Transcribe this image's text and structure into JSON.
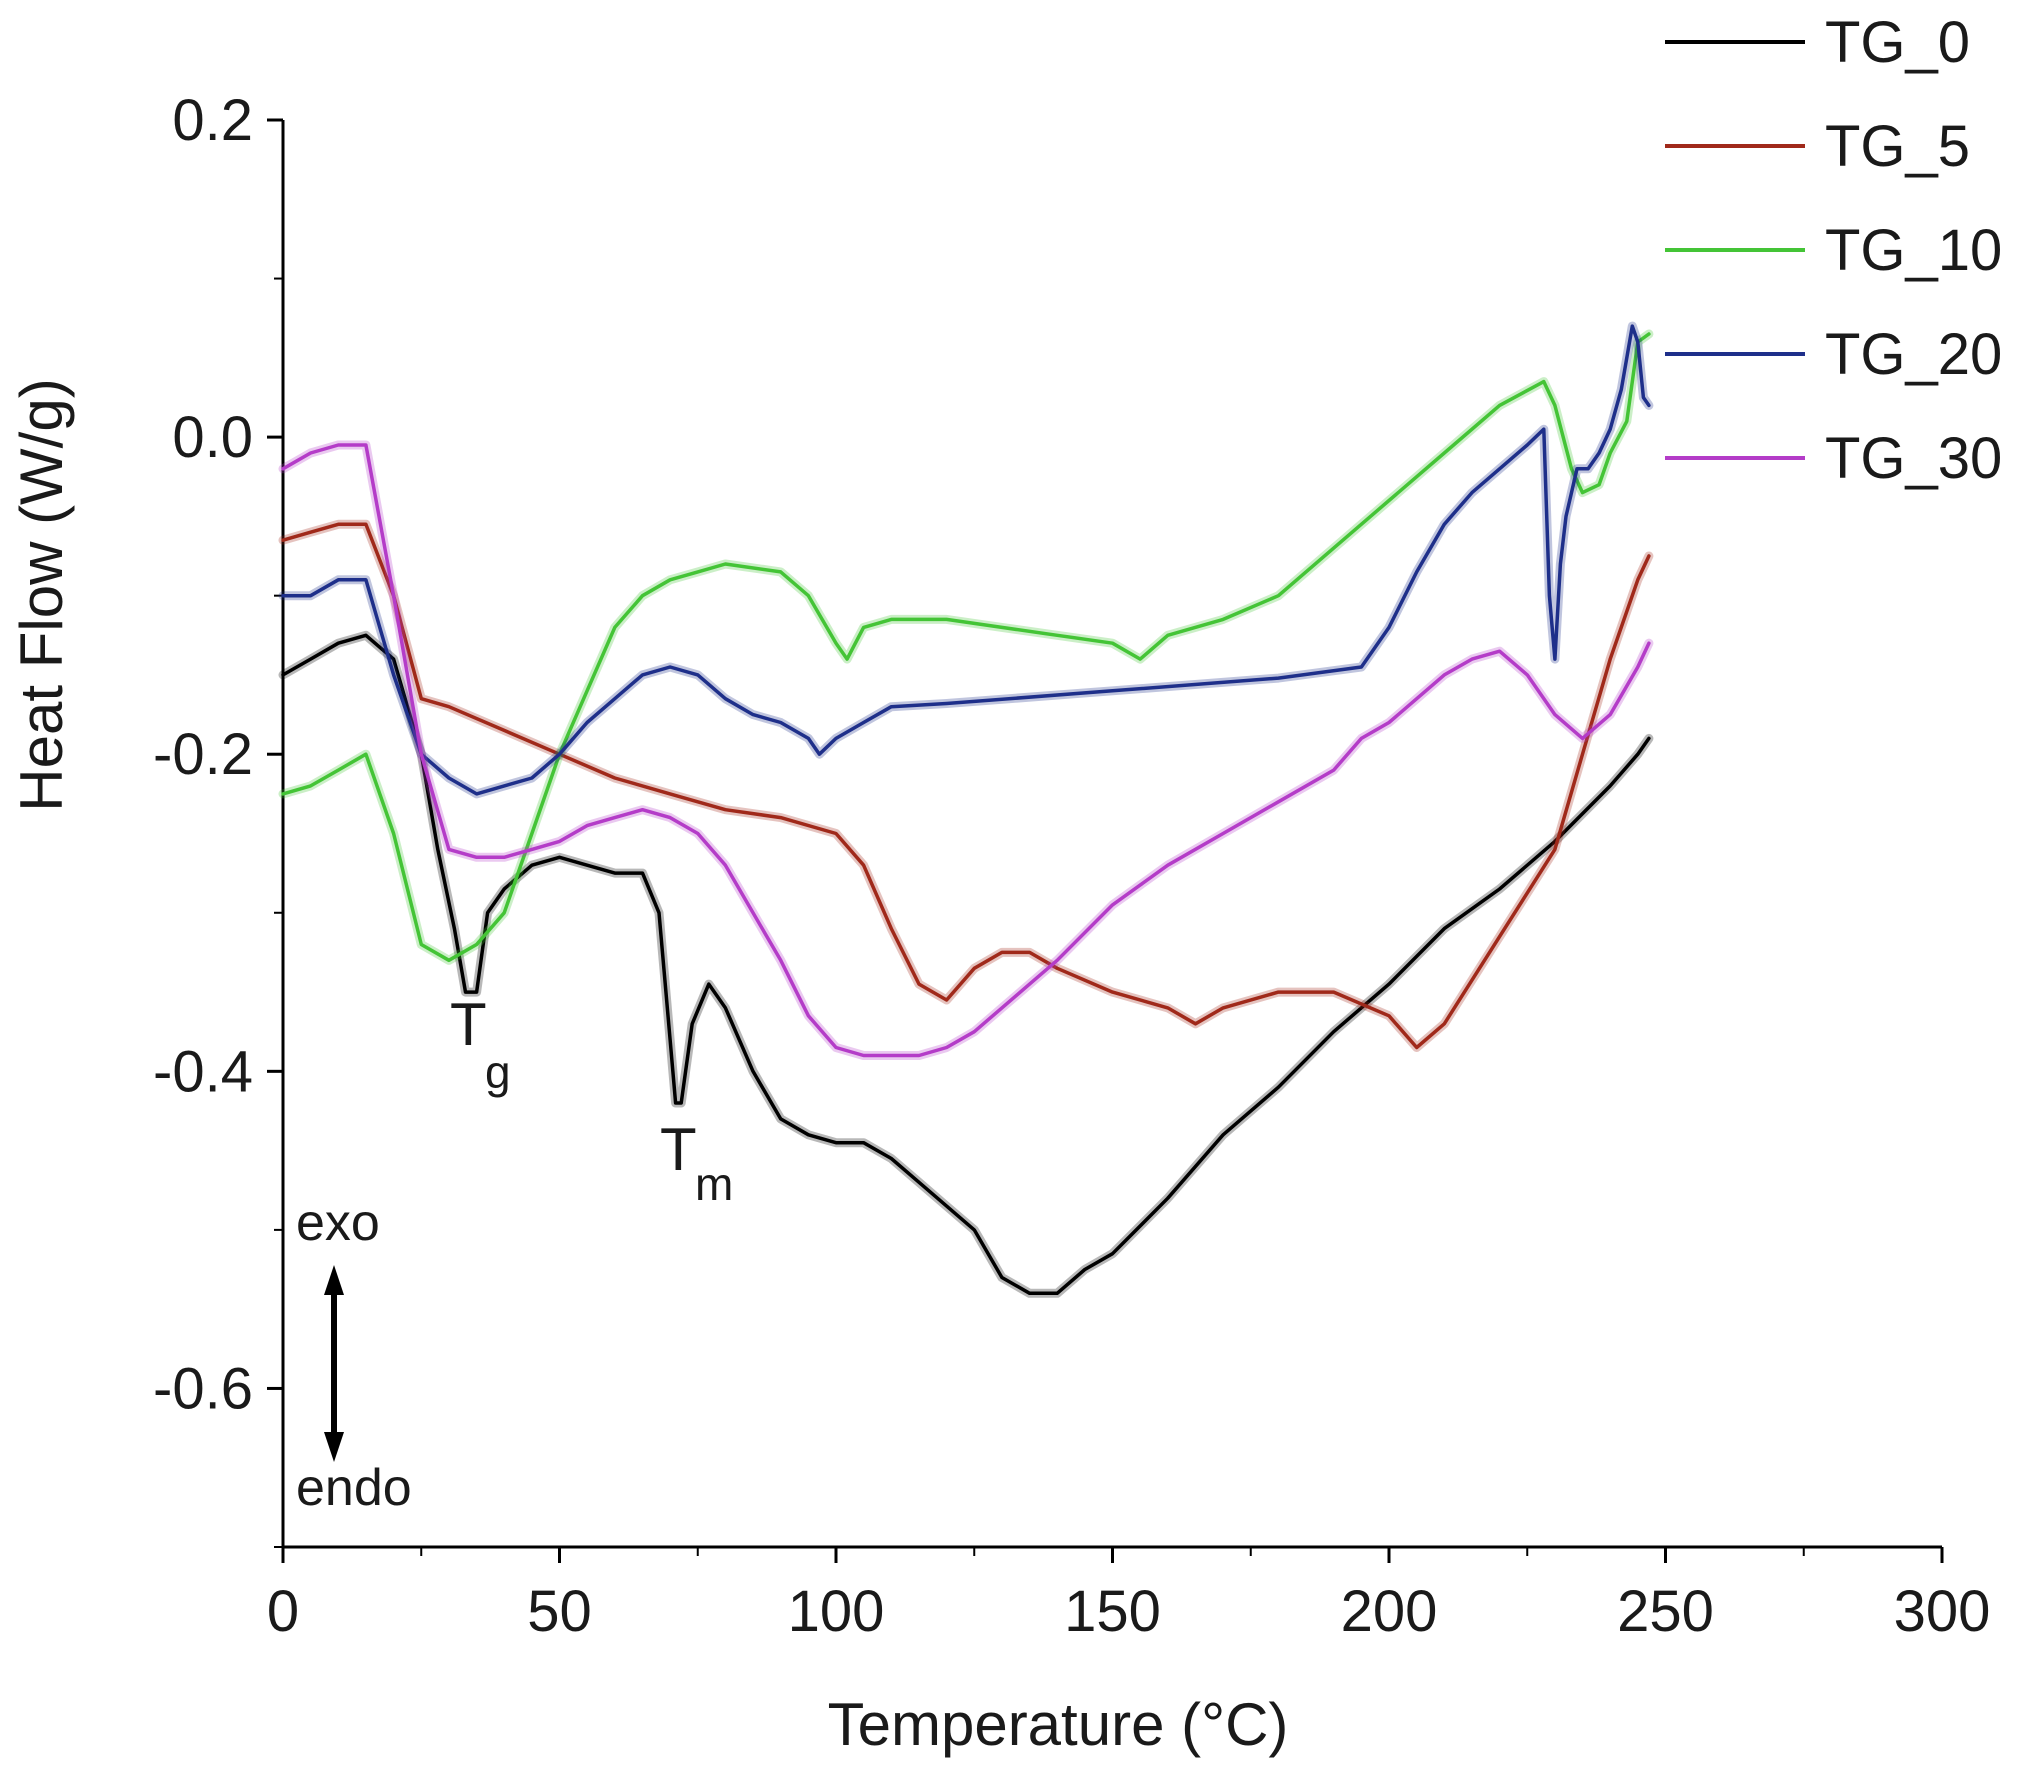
{
  "chart_data": {
    "type": "line",
    "title": "",
    "xlabel": "Temperature  (°C)",
    "ylabel": "Heat Flow (W/g)",
    "xlim": [
      0,
      300
    ],
    "ylim": [
      -0.7,
      0.2
    ],
    "x_ticks": [
      0,
      50,
      100,
      150,
      200,
      250,
      300
    ],
    "x_tick_labels": [
      "0",
      "50",
      "100",
      "150",
      "200",
      "250",
      "300"
    ],
    "y_ticks": [
      0.2,
      0.0,
      -0.2,
      -0.4,
      -0.6
    ],
    "y_tick_labels": [
      "0.2",
      "0.0",
      "-0.2",
      "-0.4",
      "-0.6"
    ],
    "grid": false,
    "legend_position": "top-right",
    "series": [
      {
        "name": "TG_0",
        "color": "#000000",
        "x": [
          0,
          5,
          10,
          15,
          20,
          25,
          28,
          31,
          33,
          35,
          37,
          40,
          45,
          50,
          55,
          60,
          65,
          68,
          70,
          71,
          72,
          74,
          77,
          80,
          85,
          90,
          95,
          100,
          105,
          110,
          115,
          120,
          125,
          130,
          135,
          140,
          145,
          150,
          160,
          170,
          180,
          190,
          200,
          210,
          220,
          230,
          240,
          245,
          247
        ],
        "y": [
          -0.15,
          -0.14,
          -0.13,
          -0.125,
          -0.14,
          -0.2,
          -0.26,
          -0.31,
          -0.35,
          -0.35,
          -0.3,
          -0.285,
          -0.27,
          -0.265,
          -0.27,
          -0.275,
          -0.275,
          -0.3,
          -0.38,
          -0.42,
          -0.42,
          -0.37,
          -0.345,
          -0.36,
          -0.4,
          -0.43,
          -0.44,
          -0.445,
          -0.445,
          -0.455,
          -0.47,
          -0.485,
          -0.5,
          -0.53,
          -0.54,
          -0.54,
          -0.525,
          -0.515,
          -0.48,
          -0.44,
          -0.41,
          -0.375,
          -0.345,
          -0.31,
          -0.285,
          -0.255,
          -0.22,
          -0.2,
          -0.19
        ]
      },
      {
        "name": "TG_5",
        "color": "#a0291a",
        "x": [
          0,
          5,
          10,
          15,
          20,
          25,
          30,
          40,
          50,
          60,
          70,
          80,
          90,
          100,
          105,
          110,
          115,
          120,
          125,
          130,
          135,
          140,
          150,
          160,
          165,
          170,
          180,
          190,
          200,
          205,
          210,
          220,
          230,
          235,
          240,
          245,
          247
        ],
        "y": [
          -0.065,
          -0.06,
          -0.055,
          -0.055,
          -0.1,
          -0.165,
          -0.17,
          -0.185,
          -0.2,
          -0.215,
          -0.225,
          -0.235,
          -0.24,
          -0.25,
          -0.27,
          -0.31,
          -0.345,
          -0.355,
          -0.335,
          -0.325,
          -0.325,
          -0.335,
          -0.35,
          -0.36,
          -0.37,
          -0.36,
          -0.35,
          -0.35,
          -0.365,
          -0.385,
          -0.37,
          -0.315,
          -0.26,
          -0.2,
          -0.14,
          -0.09,
          -0.075
        ]
      },
      {
        "name": "TG_10",
        "color": "#44c436",
        "x": [
          0,
          5,
          10,
          15,
          20,
          25,
          30,
          35,
          40,
          45,
          50,
          55,
          60,
          65,
          70,
          75,
          80,
          90,
          95,
          100,
          102,
          105,
          110,
          120,
          130,
          140,
          150,
          155,
          160,
          170,
          180,
          190,
          200,
          210,
          220,
          228,
          230,
          233,
          235,
          238,
          240,
          243,
          245,
          247
        ],
        "y": [
          -0.225,
          -0.22,
          -0.21,
          -0.2,
          -0.25,
          -0.32,
          -0.33,
          -0.32,
          -0.3,
          -0.25,
          -0.2,
          -0.16,
          -0.12,
          -0.1,
          -0.09,
          -0.085,
          -0.08,
          -0.085,
          -0.1,
          -0.13,
          -0.14,
          -0.12,
          -0.115,
          -0.115,
          -0.12,
          -0.125,
          -0.13,
          -0.14,
          -0.125,
          -0.115,
          -0.1,
          -0.07,
          -0.04,
          -0.01,
          0.02,
          0.035,
          0.02,
          -0.02,
          -0.035,
          -0.03,
          -0.01,
          0.01,
          0.06,
          0.065
        ]
      },
      {
        "name": "TG_20",
        "color": "#1e2f8a",
        "x": [
          0,
          5,
          10,
          15,
          20,
          25,
          30,
          35,
          40,
          45,
          50,
          55,
          60,
          65,
          70,
          75,
          80,
          85,
          90,
          95,
          97,
          100,
          105,
          110,
          120,
          150,
          180,
          195,
          200,
          205,
          210,
          215,
          220,
          225,
          228,
          229,
          230,
          231,
          232,
          234,
          236,
          238,
          240,
          242,
          244,
          245,
          246,
          247
        ],
        "y": [
          -0.1,
          -0.1,
          -0.09,
          -0.09,
          -0.15,
          -0.2,
          -0.215,
          -0.225,
          -0.22,
          -0.215,
          -0.2,
          -0.18,
          -0.165,
          -0.15,
          -0.145,
          -0.15,
          -0.165,
          -0.175,
          -0.18,
          -0.19,
          -0.2,
          -0.19,
          -0.18,
          -0.17,
          -0.168,
          -0.16,
          -0.152,
          -0.145,
          -0.12,
          -0.085,
          -0.055,
          -0.035,
          -0.02,
          -0.005,
          0.005,
          -0.1,
          -0.14,
          -0.08,
          -0.05,
          -0.02,
          -0.02,
          -0.01,
          0.005,
          0.03,
          0.07,
          0.06,
          0.025,
          0.02
        ]
      },
      {
        "name": "TG_30",
        "color": "#b43cc8",
        "x": [
          0,
          5,
          10,
          15,
          20,
          25,
          30,
          35,
          40,
          45,
          50,
          55,
          60,
          65,
          70,
          75,
          80,
          85,
          90,
          95,
          100,
          105,
          110,
          115,
          120,
          125,
          130,
          135,
          140,
          150,
          160,
          170,
          180,
          190,
          195,
          200,
          205,
          210,
          215,
          220,
          225,
          230,
          235,
          240,
          245,
          247
        ],
        "y": [
          -0.02,
          -0.01,
          -0.005,
          -0.005,
          -0.1,
          -0.2,
          -0.26,
          -0.265,
          -0.265,
          -0.26,
          -0.255,
          -0.245,
          -0.24,
          -0.235,
          -0.24,
          -0.25,
          -0.27,
          -0.3,
          -0.33,
          -0.365,
          -0.385,
          -0.39,
          -0.39,
          -0.39,
          -0.385,
          -0.375,
          -0.36,
          -0.345,
          -0.33,
          -0.295,
          -0.27,
          -0.25,
          -0.23,
          -0.21,
          -0.19,
          -0.18,
          -0.165,
          -0.15,
          -0.14,
          -0.135,
          -0.15,
          -0.175,
          -0.19,
          -0.175,
          -0.145,
          -0.13
        ]
      }
    ],
    "annotations": [
      {
        "text": "T",
        "sub": "g",
        "x": 33,
        "y": -0.35
      },
      {
        "text": "T",
        "sub": "m",
        "x": 71,
        "y": -0.42
      },
      {
        "text": "exo"
      },
      {
        "text": "endo"
      }
    ]
  }
}
